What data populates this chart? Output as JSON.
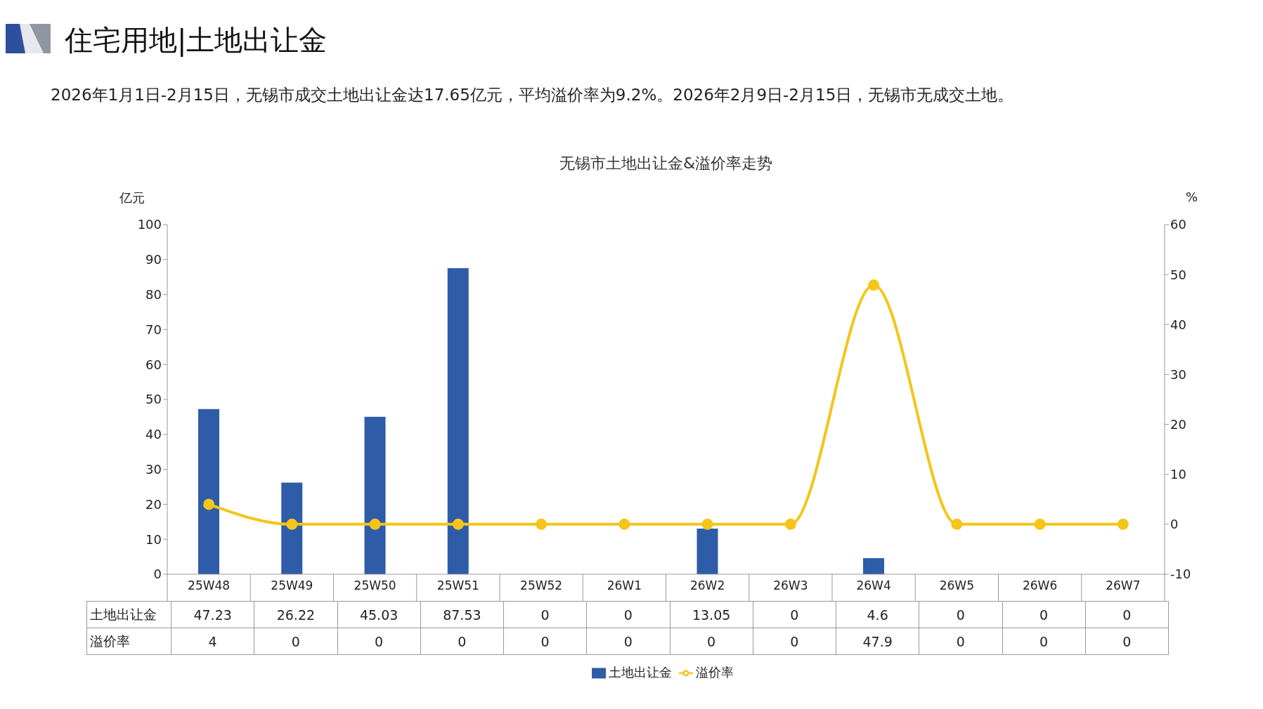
{
  "chart_data": {
    "type": "bar",
    "title": "住宅用地|土地出让金",
    "subtitle": "2026年1月1日-2月15日，无锡市成交土地出让金达17.65亿元，平均溢价率为9.2%。2026年2月9日-2月15日，无锡市无成交土地。",
    "annotations": [
      "无锡市土地出让金&溢价率走势"
    ],
    "ylabel": "亿元",
    "y2label": "%",
    "categories": [
      "25W48",
      "25W49",
      "25W50",
      "25W51",
      "25W52",
      "26W1",
      "26W2",
      "26W3",
      "26W4",
      "26W5",
      "26W6",
      "26W7"
    ],
    "series": [
      {
        "name": "土地出让金",
        "color": "#2e5ca8",
        "values": [
          47.23,
          26.22,
          45.03,
          87.53,
          0,
          0,
          13.05,
          0,
          4.6,
          0,
          0,
          0
        ]
      },
      {
        "name": "溢价率",
        "type": "line",
        "axis": "y2",
        "color": "#f5c518",
        "values": [
          4,
          0,
          0,
          0,
          0,
          0,
          0,
          0,
          47.9,
          0,
          0,
          0
        ]
      }
    ],
    "ylim": [
      0,
      100
    ],
    "yticks": [
      0,
      10,
      20,
      30,
      40,
      50,
      60,
      70,
      80,
      90,
      100
    ],
    "y2lim": [
      -10,
      60
    ],
    "y2ticks": [
      -10,
      0,
      10,
      20,
      30,
      40,
      50,
      60
    ],
    "grid": false,
    "legend": "bottom",
    "marker": "circle",
    "line_style": "solid",
    "data_labels": true
  }
}
